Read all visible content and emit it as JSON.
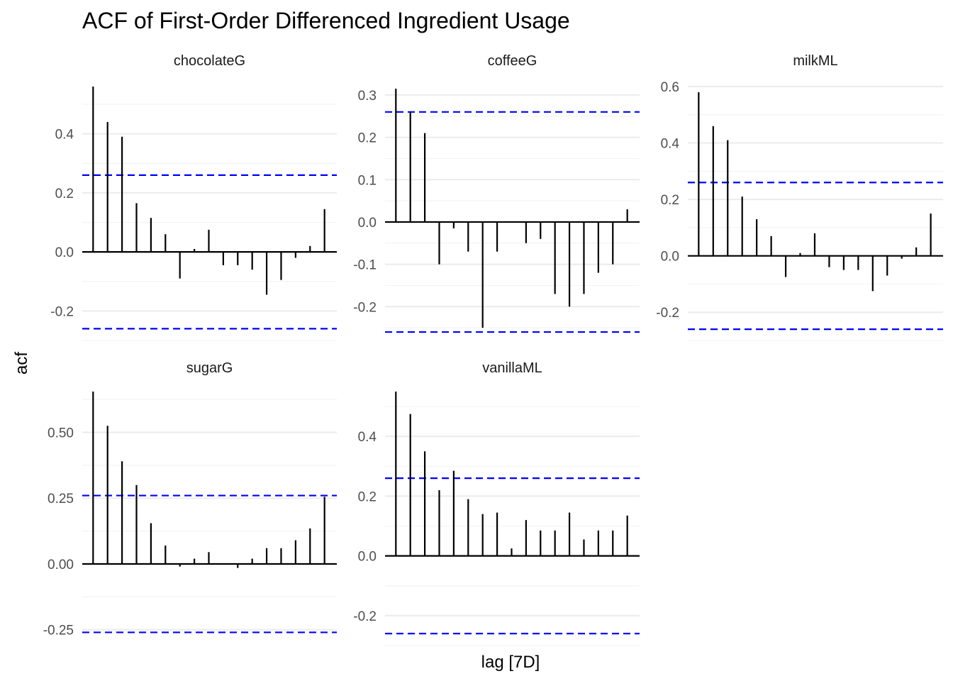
{
  "title": "ACF of First-Order Differenced Ingredient Usage",
  "xlabel": "lag [7D]",
  "ylabel": "acf",
  "colors": {
    "bars": "#000000",
    "ci": "#0000ff",
    "grid": "#ebebeb"
  },
  "chart_data": [
    {
      "type": "bar",
      "facet": "chocolateG",
      "x": [
        1,
        2,
        3,
        4,
        5,
        6,
        7,
        8,
        9,
        10,
        11,
        12,
        13,
        14,
        15,
        16,
        17
      ],
      "values": [
        0.56,
        0.44,
        0.39,
        0.165,
        0.115,
        0.06,
        -0.09,
        0.01,
        0.075,
        -0.045,
        -0.045,
        -0.06,
        -0.145,
        -0.095,
        -0.02,
        0.02,
        0.145
      ],
      "ci": 0.26,
      "ylim": [
        -0.3,
        0.56
      ],
      "yticks": [
        -0.2,
        0.0,
        0.2,
        0.4
      ],
      "ytick_labels": [
        "-0.2",
        "0.0",
        "0.2",
        "0.4"
      ]
    },
    {
      "type": "bar",
      "facet": "coffeeG",
      "x": [
        1,
        2,
        3,
        4,
        5,
        6,
        7,
        8,
        9,
        10,
        11,
        12,
        13,
        14,
        15,
        16,
        17
      ],
      "values": [
        0.315,
        0.26,
        0.21,
        -0.1,
        -0.015,
        -0.07,
        -0.25,
        -0.07,
        0.0,
        -0.05,
        -0.04,
        -0.17,
        -0.2,
        -0.17,
        -0.12,
        -0.1,
        0.03
      ],
      "ci": 0.26,
      "ylim": [
        -0.28,
        0.32
      ],
      "yticks": [
        -0.2,
        -0.1,
        0.0,
        0.1,
        0.2,
        0.3
      ],
      "ytick_labels": [
        "-0.2",
        "-0.1",
        "0.0",
        "0.1",
        "0.2",
        "0.3"
      ]
    },
    {
      "type": "bar",
      "facet": "milkML",
      "x": [
        1,
        2,
        3,
        4,
        5,
        6,
        7,
        8,
        9,
        10,
        11,
        12,
        13,
        14,
        15,
        16,
        17
      ],
      "values": [
        0.58,
        0.46,
        0.41,
        0.21,
        0.13,
        0.07,
        -0.075,
        0.01,
        0.08,
        -0.04,
        -0.05,
        -0.05,
        -0.125,
        -0.07,
        -0.01,
        0.03,
        0.15
      ],
      "ci": 0.26,
      "ylim": [
        -0.3,
        0.6
      ],
      "yticks": [
        -0.2,
        0.0,
        0.2,
        0.4,
        0.6
      ],
      "ytick_labels": [
        "-0.2",
        "0.0",
        "0.2",
        "0.4",
        "0.6"
      ]
    },
    {
      "type": "bar",
      "facet": "sugarG",
      "x": [
        1,
        2,
        3,
        4,
        5,
        6,
        7,
        8,
        9,
        10,
        11,
        12,
        13,
        14,
        15,
        16,
        17
      ],
      "values": [
        0.655,
        0.525,
        0.39,
        0.3,
        0.155,
        0.07,
        -0.01,
        0.02,
        0.045,
        0.0,
        -0.015,
        0.02,
        0.06,
        0.06,
        0.09,
        0.135,
        0.255
      ],
      "ci": 0.26,
      "ylim": [
        -0.31,
        0.655
      ],
      "yticks": [
        -0.25,
        0.0,
        0.25,
        0.5
      ],
      "ytick_labels": [
        "-0.25",
        "0.00",
        "0.25",
        "0.50"
      ]
    },
    {
      "type": "bar",
      "facet": "vanillaML",
      "x": [
        1,
        2,
        3,
        4,
        5,
        6,
        7,
        8,
        9,
        10,
        11,
        12,
        13,
        14,
        15,
        16,
        17
      ],
      "values": [
        0.55,
        0.475,
        0.35,
        0.22,
        0.285,
        0.19,
        0.14,
        0.145,
        0.025,
        0.12,
        0.085,
        0.085,
        0.145,
        0.055,
        0.085,
        0.085,
        0.135
      ],
      "ci": 0.26,
      "ylim": [
        -0.3,
        0.55
      ],
      "yticks": [
        -0.2,
        0.0,
        0.2,
        0.4
      ],
      "ytick_labels": [
        "-0.2",
        "0.0",
        "0.2",
        "0.4"
      ]
    }
  ]
}
